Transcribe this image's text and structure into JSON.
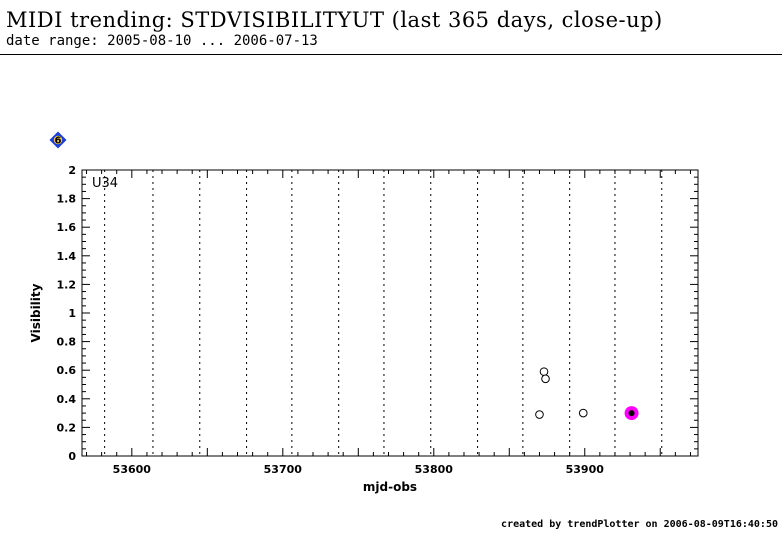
{
  "header": {
    "title": "MIDI trending: STDVISIBILITYUT (last 365 days, close-up)",
    "subtitle": "date range: 2005-08-10 ... 2006-07-13"
  },
  "footer": {
    "credit": "created by trendPlotter on 2006-08-09T16:40:50"
  },
  "badge": {
    "value": "6",
    "color": "#1a3fd8",
    "icon": "diamond-icon"
  },
  "colors": {
    "highlight": "#ff00ff",
    "axis": "#000000"
  },
  "chart_data": {
    "type": "scatter",
    "panel_label": "U34",
    "xlabel": "mjd-obs",
    "ylabel": "Visibility",
    "xlim": [
      53567,
      53975
    ],
    "ylim": [
      0,
      2
    ],
    "x_ticks": [
      53600,
      53700,
      53800,
      53900
    ],
    "y_ticks": [
      0,
      0.2,
      0.4,
      0.6,
      0.8,
      1,
      1.2,
      1.4,
      1.6,
      1.8,
      2
    ],
    "grid": "vertical dotted lines",
    "vlines": [
      53582,
      53614,
      53645,
      53676,
      53706,
      53737,
      53767,
      53798,
      53829,
      53859,
      53890,
      53920,
      53951
    ],
    "points": [
      {
        "x": 53870,
        "y": 0.29,
        "highlight": false
      },
      {
        "x": 53873,
        "y": 0.59,
        "highlight": false
      },
      {
        "x": 53874,
        "y": 0.54,
        "highlight": false
      },
      {
        "x": 53899,
        "y": 0.3,
        "highlight": false
      },
      {
        "x": 53931,
        "y": 0.3,
        "highlight": true
      }
    ]
  }
}
